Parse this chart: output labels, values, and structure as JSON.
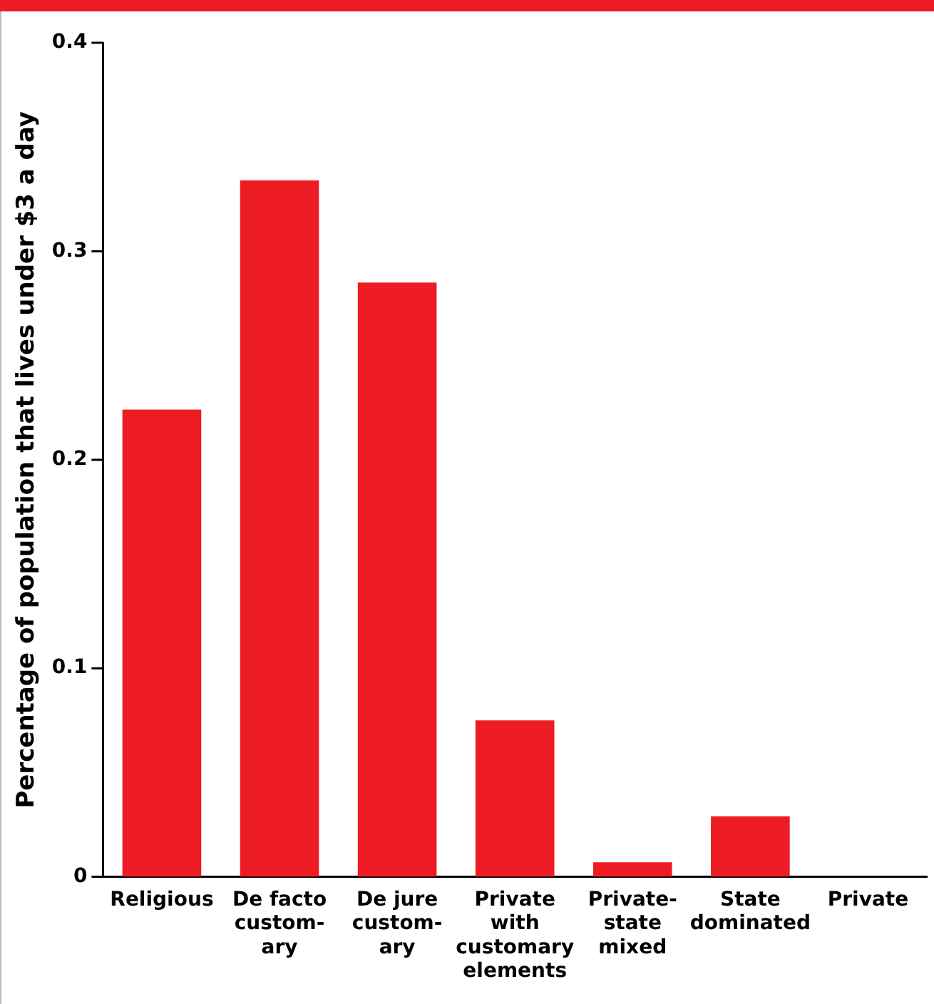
{
  "chart_data": {
    "type": "bar",
    "ylabel": "Percentage of population that lives under $3 a day",
    "categories": [
      "Religious",
      "De facto\ncustom-\nary",
      "De jure\ncustom-\nary",
      "Private\nwith\ncustomary\nelements",
      "Private-\nstate\nmixed",
      "State\ndominated",
      "Private"
    ],
    "values": [
      0.224,
      0.334,
      0.285,
      0.075,
      0.007,
      0.029,
      0
    ],
    "color": "#ed1c24",
    "ylim": [
      0,
      0.4
    ],
    "yticks": [
      0,
      0.1,
      0.2,
      0.3,
      0.4
    ],
    "grid": false,
    "legend": false
  }
}
